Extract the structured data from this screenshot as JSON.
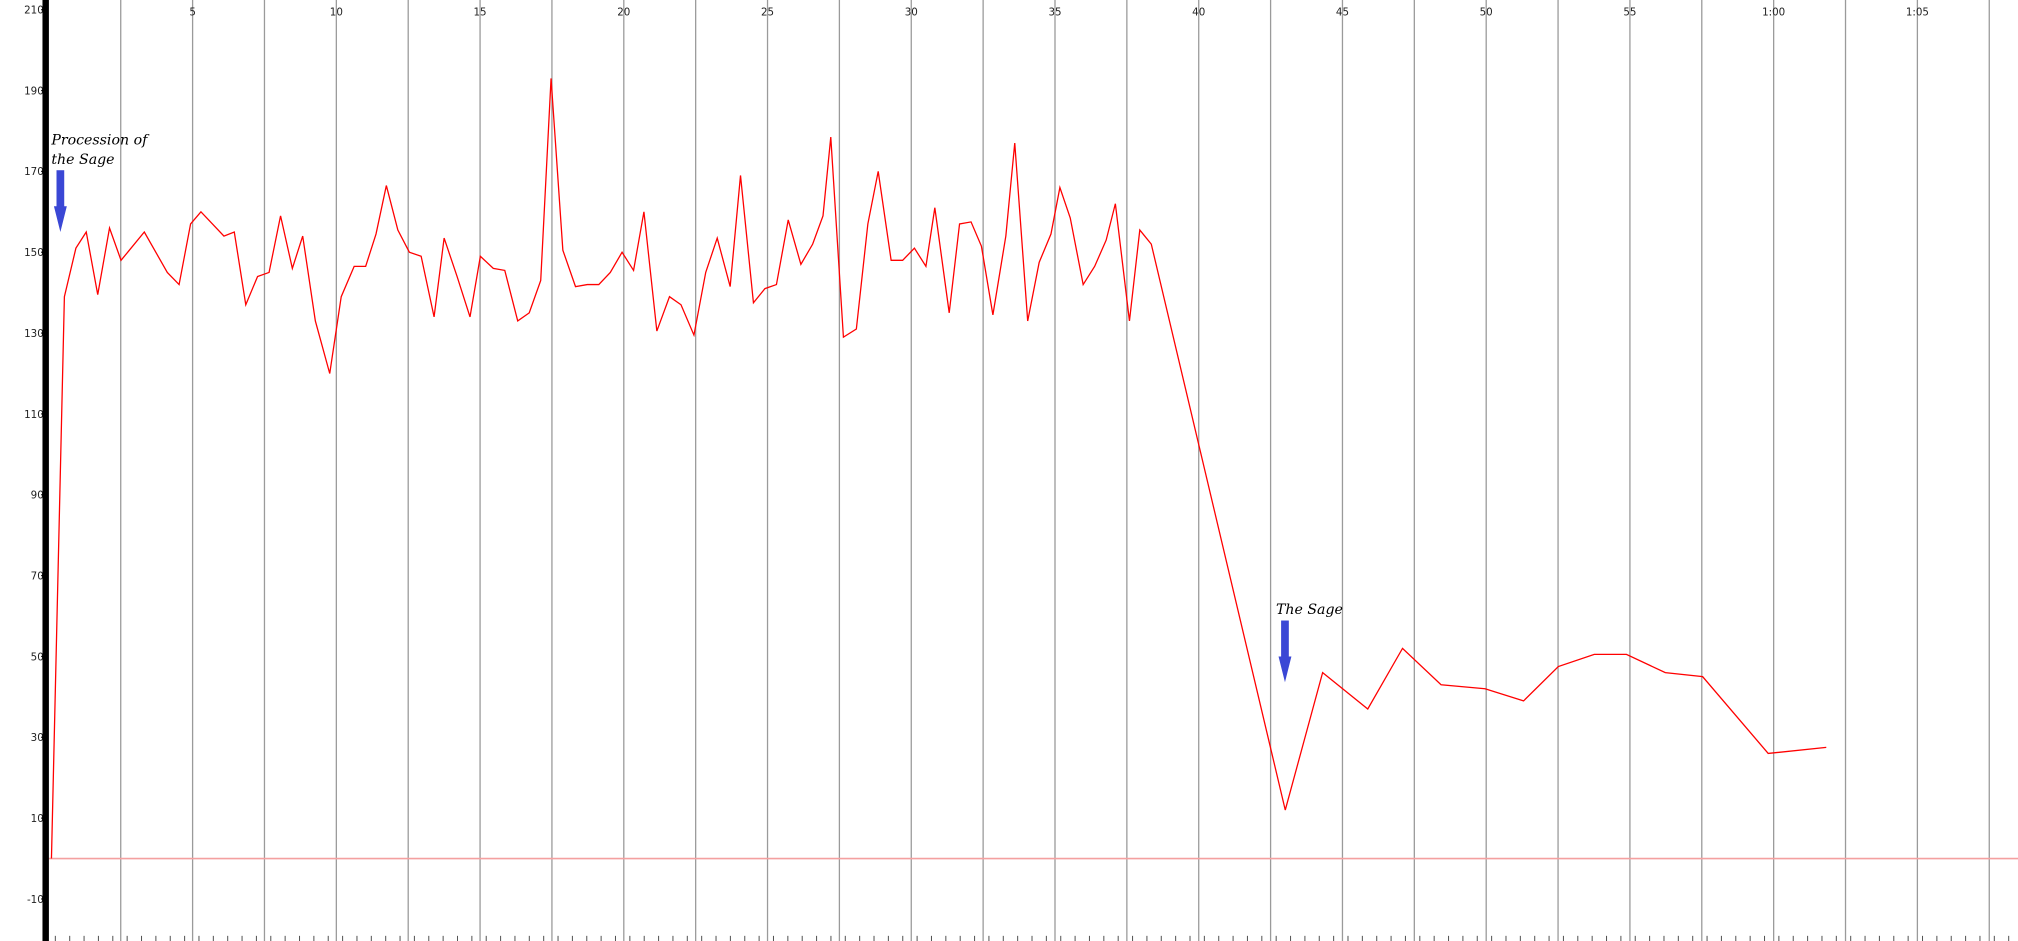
{
  "chart_data": {
    "type": "line",
    "color": "#ff0000",
    "x": [
      0.09,
      0.54,
      0.94,
      1.3,
      1.7,
      2.11,
      2.51,
      3.32,
      4.12,
      4.53,
      4.93,
      5.29,
      5.69,
      6.09,
      6.45,
      6.85,
      7.26,
      7.66,
      8.06,
      8.47,
      8.83,
      9.27,
      9.77,
      10.17,
      10.62,
      11.02,
      11.38,
      11.74,
      12.14,
      12.54,
      12.95,
      13.4,
      13.75,
      14.2,
      14.65,
      15.01,
      15.46,
      15.86,
      16.31,
      16.71,
      17.11,
      17.47,
      17.88,
      18.32,
      18.73,
      19.13,
      19.53,
      19.94,
      20.34,
      20.7,
      21.15,
      21.59,
      21.99,
      22.44,
      22.85,
      23.25,
      23.7,
      24.06,
      24.51,
      24.91,
      25.31,
      25.72,
      26.16,
      26.57,
      26.93,
      27.2,
      27.64,
      28.09,
      28.49,
      28.85,
      29.3,
      29.7,
      30.11,
      30.51,
      30.82,
      31.32,
      31.68,
      32.08,
      32.44,
      32.84,
      33.29,
      33.6,
      34.05,
      34.45,
      34.86,
      35.17,
      35.53,
      35.98,
      36.38,
      36.78,
      37.1,
      37.59,
      37.95,
      38.35,
      43.01,
      44.31,
      45.88,
      47.09,
      48.43,
      49.96,
      51.3,
      52.51,
      53.76,
      54.88,
      56.23,
      57.53,
      59.81,
      61.83
    ],
    "values": [
      0,
      139,
      151,
      155,
      139.5,
      156,
      148,
      155,
      145,
      142,
      157,
      160,
      157,
      154,
      155,
      137,
      144,
      145,
      159,
      146,
      154,
      133,
      120,
      139,
      146.5,
      146.5,
      154.5,
      166.5,
      155.5,
      150,
      149,
      134,
      153.5,
      144,
      134,
      149,
      146,
      145.5,
      133,
      135,
      143,
      193,
      150.5,
      141.5,
      142,
      142,
      145,
      150,
      145.5,
      160,
      130.5,
      139,
      137,
      129.5,
      145,
      153.5,
      141.5,
      169,
      137.5,
      141,
      142,
      158,
      147,
      152,
      159,
      178.5,
      129,
      131,
      157,
      170,
      148,
      148,
      151,
      146.5,
      161,
      135,
      157,
      157.5,
      151.5,
      134.5,
      154,
      177,
      133,
      147.5,
      154.5,
      166,
      158.5,
      142,
      146.5,
      153,
      162,
      133,
      155.5,
      152,
      12,
      46,
      37,
      52,
      43,
      42,
      39,
      47.5,
      50.5,
      50.5,
      46,
      45,
      26,
      27.5
    ],
    "xlim": [
      -1.7,
      68.5
    ],
    "ylim": [
      -20.4,
      212.4
    ],
    "xticks": [
      5,
      10,
      15,
      20,
      25,
      30,
      35,
      40,
      45,
      50,
      55,
      {
        "value": 60,
        "label": "1:00"
      },
      {
        "value": 65,
        "label": "1:05"
      }
    ],
    "xgrid": [
      2.5,
      5,
      7.5,
      10,
      12.5,
      15,
      17.5,
      20,
      22.5,
      25,
      27.5,
      30,
      32.5,
      35,
      37.5,
      40,
      42.5,
      45,
      47.5,
      50,
      52.5,
      55,
      57.5,
      60,
      62.5,
      65,
      67.5
    ],
    "yticks": [
      210,
      190,
      170,
      150,
      130,
      110,
      90,
      70,
      50,
      30,
      10,
      -10
    ],
    "annotations": [
      {
        "lines": [
          "Procession of",
          "the Sage"
        ],
        "x": 0.4,
        "y": 155
      },
      {
        "lines": [
          "The Sage"
        ],
        "x": 43.0,
        "y": 43.6
      }
    ]
  }
}
